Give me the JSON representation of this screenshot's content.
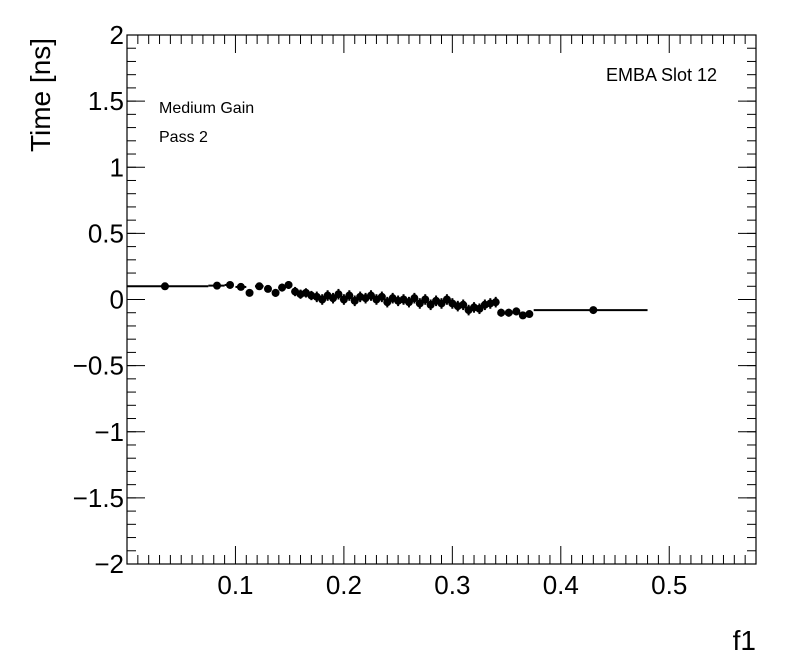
{
  "chart_data": {
    "type": "scatter",
    "title": "",
    "xlabel": "f1",
    "ylabel": "Time [ns]",
    "xlim": [
      0,
      0.58
    ],
    "ylim": [
      -2,
      2
    ],
    "x_ticks": [
      0.1,
      0.2,
      0.3,
      0.4,
      0.5
    ],
    "x_tick_labels": [
      "0.1",
      "0.2",
      "0.3",
      "0.4",
      "0.5"
    ],
    "y_ticks": [
      -2,
      -1.5,
      -1,
      -0.5,
      0,
      0.5,
      1,
      1.5,
      2
    ],
    "y_tick_labels": [
      "−2",
      "−1.5",
      "−1",
      "−0.5",
      "0",
      "0.5",
      "1",
      "1.5",
      "2"
    ],
    "grid": false,
    "annotations": {
      "top_right": "EMBA Slot 12",
      "line1": "Medium Gain",
      "line2": "Pass 2"
    },
    "series": [
      {
        "points": [
          {
            "x": 0.035,
            "y": 0.1,
            "xerr": [
              0.0,
              0.075
            ],
            "yerr": 0.01
          },
          {
            "x": 0.083,
            "y": 0.105,
            "xerr": [
              0.075,
              0.09
            ],
            "yerr": 0.015
          },
          {
            "x": 0.095,
            "y": 0.11,
            "xerr": [
              0.09,
              0.098
            ],
            "yerr": 0.02
          },
          {
            "x": 0.105,
            "y": 0.095,
            "xerr": [
              0.1,
              0.11
            ],
            "yerr": 0.02
          },
          {
            "x": 0.113,
            "y": 0.05,
            "xerr": [
              0.11,
              0.116
            ],
            "yerr": 0.02
          },
          {
            "x": 0.122,
            "y": 0.1,
            "xerr": [
              0.118,
              0.126
            ],
            "yerr": 0.025
          },
          {
            "x": 0.13,
            "y": 0.08,
            "xerr": [
              0.127,
              0.133
            ],
            "yerr": 0.025
          },
          {
            "x": 0.137,
            "y": 0.05,
            "xerr": [
              0.134,
              0.14
            ],
            "yerr": 0.03
          },
          {
            "x": 0.143,
            "y": 0.09,
            "xerr": [
              0.14,
              0.146
            ],
            "yerr": 0.03
          },
          {
            "x": 0.149,
            "y": 0.11,
            "xerr": [
              0.146,
              0.152
            ],
            "yerr": 0.03
          },
          {
            "x": 0.155,
            "y": 0.06,
            "xerr": [
              0.153,
              0.157
            ],
            "yerr": 0.035
          },
          {
            "x": 0.16,
            "y": 0.04,
            "xerr": [
              0.158,
              0.162
            ],
            "yerr": 0.035
          },
          {
            "x": 0.165,
            "y": 0.05,
            "xerr": [
              0.163,
              0.167
            ],
            "yerr": 0.035
          },
          {
            "x": 0.17,
            "y": 0.03,
            "xerr": [
              0.168,
              0.172
            ],
            "yerr": 0.035
          },
          {
            "x": 0.175,
            "y": 0.02,
            "xerr": [
              0.173,
              0.177
            ],
            "yerr": 0.04
          },
          {
            "x": 0.18,
            "y": 0.0,
            "xerr": [
              0.178,
              0.182
            ],
            "yerr": 0.04
          },
          {
            "x": 0.185,
            "y": 0.03,
            "xerr": [
              0.183,
              0.187
            ],
            "yerr": 0.04
          },
          {
            "x": 0.19,
            "y": 0.01,
            "xerr": [
              0.188,
              0.192
            ],
            "yerr": 0.04
          },
          {
            "x": 0.195,
            "y": 0.04,
            "xerr": [
              0.193,
              0.197
            ],
            "yerr": 0.04
          },
          {
            "x": 0.2,
            "y": 0.0,
            "xerr": [
              0.198,
              0.202
            ],
            "yerr": 0.04
          },
          {
            "x": 0.205,
            "y": 0.03,
            "xerr": [
              0.203,
              0.207
            ],
            "yerr": 0.04
          },
          {
            "x": 0.21,
            "y": -0.01,
            "xerr": [
              0.208,
              0.212
            ],
            "yerr": 0.04
          },
          {
            "x": 0.215,
            "y": 0.02,
            "xerr": [
              0.213,
              0.217
            ],
            "yerr": 0.04
          },
          {
            "x": 0.22,
            "y": 0.01,
            "xerr": [
              0.218,
              0.222
            ],
            "yerr": 0.04
          },
          {
            "x": 0.225,
            "y": 0.03,
            "xerr": [
              0.223,
              0.227
            ],
            "yerr": 0.04
          },
          {
            "x": 0.23,
            "y": 0.0,
            "xerr": [
              0.228,
              0.232
            ],
            "yerr": 0.04
          },
          {
            "x": 0.235,
            "y": 0.02,
            "xerr": [
              0.233,
              0.237
            ],
            "yerr": 0.04
          },
          {
            "x": 0.24,
            "y": -0.02,
            "xerr": [
              0.238,
              0.242
            ],
            "yerr": 0.04
          },
          {
            "x": 0.245,
            "y": 0.01,
            "xerr": [
              0.243,
              0.247
            ],
            "yerr": 0.04
          },
          {
            "x": 0.25,
            "y": -0.01,
            "xerr": [
              0.248,
              0.252
            ],
            "yerr": 0.04
          },
          {
            "x": 0.255,
            "y": 0.0,
            "xerr": [
              0.253,
              0.257
            ],
            "yerr": 0.04
          },
          {
            "x": 0.26,
            "y": -0.02,
            "xerr": [
              0.258,
              0.262
            ],
            "yerr": 0.04
          },
          {
            "x": 0.265,
            "y": 0.01,
            "xerr": [
              0.263,
              0.267
            ],
            "yerr": 0.04
          },
          {
            "x": 0.27,
            "y": -0.03,
            "xerr": [
              0.268,
              0.272
            ],
            "yerr": 0.04
          },
          {
            "x": 0.275,
            "y": 0.0,
            "xerr": [
              0.273,
              0.277
            ],
            "yerr": 0.04
          },
          {
            "x": 0.28,
            "y": -0.04,
            "xerr": [
              0.278,
              0.282
            ],
            "yerr": 0.04
          },
          {
            "x": 0.285,
            "y": -0.01,
            "xerr": [
              0.283,
              0.287
            ],
            "yerr": 0.04
          },
          {
            "x": 0.29,
            "y": -0.03,
            "xerr": [
              0.288,
              0.292
            ],
            "yerr": 0.04
          },
          {
            "x": 0.295,
            "y": 0.0,
            "xerr": [
              0.293,
              0.297
            ],
            "yerr": 0.04
          },
          {
            "x": 0.3,
            "y": -0.03,
            "xerr": [
              0.298,
              0.302
            ],
            "yerr": 0.04
          },
          {
            "x": 0.305,
            "y": -0.05,
            "xerr": [
              0.303,
              0.307
            ],
            "yerr": 0.04
          },
          {
            "x": 0.31,
            "y": -0.04,
            "xerr": [
              0.308,
              0.312
            ],
            "yerr": 0.04
          },
          {
            "x": 0.315,
            "y": -0.08,
            "xerr": [
              0.313,
              0.317
            ],
            "yerr": 0.04
          },
          {
            "x": 0.32,
            "y": -0.06,
            "xerr": [
              0.318,
              0.322
            ],
            "yerr": 0.04
          },
          {
            "x": 0.325,
            "y": -0.07,
            "xerr": [
              0.323,
              0.327
            ],
            "yerr": 0.04
          },
          {
            "x": 0.33,
            "y": -0.04,
            "xerr": [
              0.328,
              0.332
            ],
            "yerr": 0.04
          },
          {
            "x": 0.335,
            "y": -0.03,
            "xerr": [
              0.333,
              0.337
            ],
            "yerr": 0.04
          },
          {
            "x": 0.34,
            "y": -0.02,
            "xerr": [
              0.338,
              0.342
            ],
            "yerr": 0.04
          },
          {
            "x": 0.345,
            "y": -0.1,
            "xerr": [
              0.342,
              0.348
            ],
            "yerr": 0.03
          },
          {
            "x": 0.352,
            "y": -0.1,
            "xerr": [
              0.348,
              0.356
            ],
            "yerr": 0.03
          },
          {
            "x": 0.359,
            "y": -0.09,
            "xerr": [
              0.356,
              0.362
            ],
            "yerr": 0.03
          },
          {
            "x": 0.365,
            "y": -0.12,
            "xerr": [
              0.362,
              0.368
            ],
            "yerr": 0.025
          },
          {
            "x": 0.371,
            "y": -0.11,
            "xerr": [
              0.368,
              0.374
            ],
            "yerr": 0.025
          },
          {
            "x": 0.43,
            "y": -0.08,
            "xerr": [
              0.375,
              0.48
            ],
            "yerr": 0.015
          }
        ]
      }
    ]
  }
}
